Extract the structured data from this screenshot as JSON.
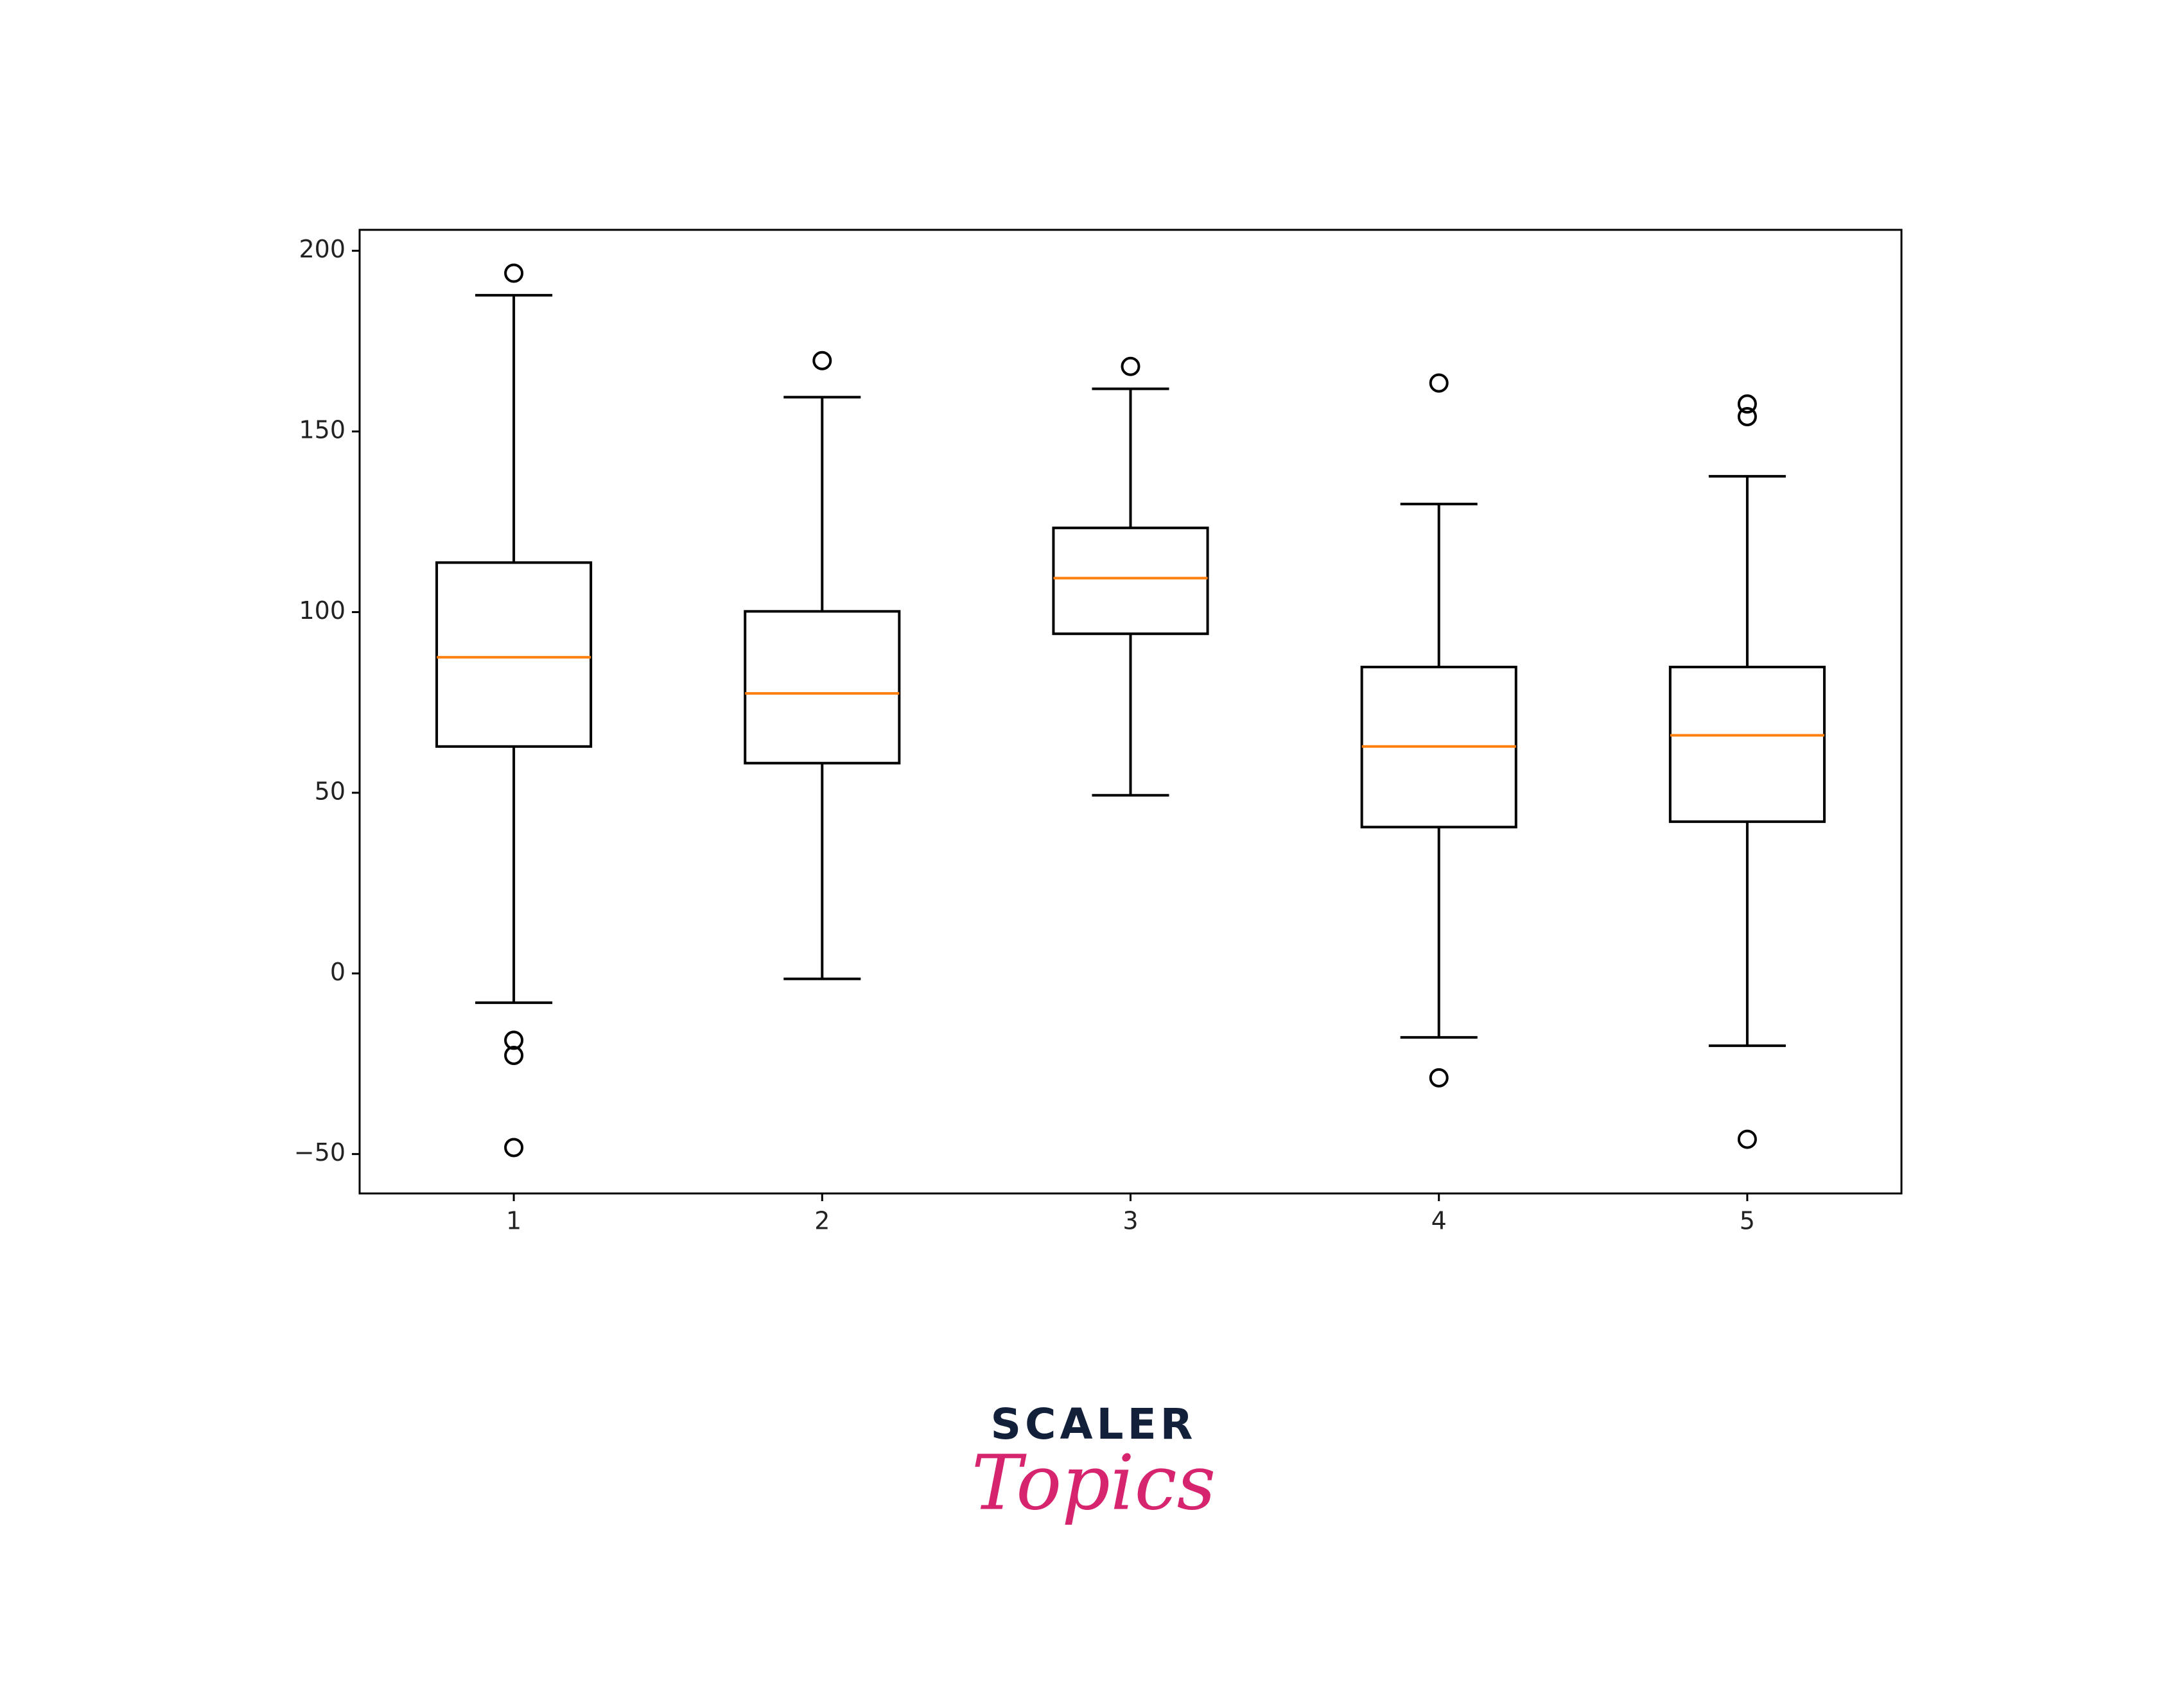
{
  "chart_data": {
    "type": "box",
    "categories": [
      "1",
      "2",
      "3",
      "4",
      "5"
    ],
    "boxes": [
      {
        "whislo": -8.1,
        "q1": 62.8,
        "med": 87.5,
        "q3": 113.7,
        "whishi": 187.7,
        "fliers": [
          193.8,
          -18.5,
          -22.7,
          -48.2
        ]
      },
      {
        "whislo": -1.5,
        "q1": 58.2,
        "med": 77.5,
        "q3": 100.2,
        "whishi": 159.5,
        "fliers": [
          169.6
        ]
      },
      {
        "whislo": 49.3,
        "q1": 94.0,
        "med": 109.4,
        "q3": 123.3,
        "whishi": 161.8,
        "fliers": [
          168.0
        ]
      },
      {
        "whislo": -17.7,
        "q1": 40.5,
        "med": 62.8,
        "q3": 84.8,
        "whishi": 129.9,
        "fliers": [
          163.4,
          -28.9
        ]
      },
      {
        "whislo": -20.0,
        "q1": 42.0,
        "med": 65.9,
        "q3": 84.8,
        "whishi": 137.6,
        "fliers": [
          157.6,
          154.1,
          -45.9
        ]
      }
    ],
    "color": "#000000",
    "median_color": "#ff7f0e",
    "ylim": [
      -60.9,
      205.8
    ],
    "yticks": [
      {
        "value": -50,
        "label": "−50"
      },
      0,
      50,
      100,
      150,
      200
    ]
  },
  "logo": {
    "name": "SCALER",
    "tagline": "Topics"
  }
}
